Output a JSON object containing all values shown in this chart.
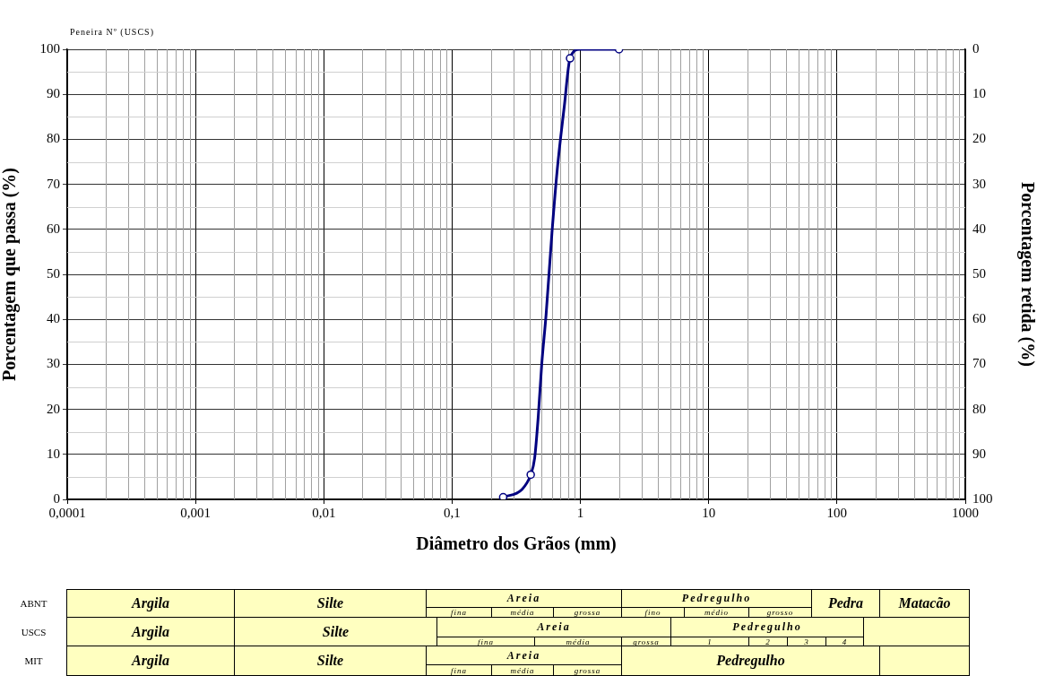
{
  "chart_data": {
    "type": "line",
    "xlabel": "Diâmetro dos Grãos (mm)",
    "ylabel": "Porcentagem que passa (%)",
    "y2label": "Porcentagem retida (%)",
    "log": "x",
    "grid": true,
    "xlim": [
      0.0001,
      1000
    ],
    "xticks": [
      {
        "value": 0.0001,
        "label": "0,0001"
      },
      {
        "value": 0.001,
        "label": "0,001"
      },
      {
        "value": 0.01,
        "label": "0,01"
      },
      {
        "value": 0.1,
        "label": "0,1"
      },
      1,
      10,
      100,
      1000
    ],
    "ylim": [
      0,
      100
    ],
    "yticks": [
      0,
      10,
      20,
      30,
      40,
      50,
      60,
      70,
      80,
      90,
      100
    ],
    "y2lim": [
      100,
      0
    ],
    "y2ticks": [
      0,
      10,
      20,
      30,
      40,
      50,
      60,
      70,
      80,
      90,
      100
    ],
    "series": [
      {
        "type": "line",
        "color": "#000080",
        "marker": "none",
        "x": [
          0.25,
          0.35,
          0.41,
          0.44,
          0.47,
          0.5,
          0.54,
          0.6,
          0.66,
          0.75,
          0.83,
          0.99,
          1.26,
          2.0
        ],
        "values": [
          0.5,
          2.2,
          5.5,
          9.2,
          18.7,
          30.2,
          41,
          59.2,
          73.3,
          87.5,
          98,
          100,
          100,
          100
        ]
      },
      {
        "type": "scatter",
        "color": "#000080",
        "marker": "circle",
        "x": [
          0.25,
          0.41,
          0.83,
          2.0
        ],
        "values": [
          0.5,
          5.5,
          98,
          100
        ]
      }
    ],
    "annotations": [
      "Peneira Nº (USCS)",
      "ABNT",
      "Argila",
      "Silte",
      "Areia",
      "fina",
      "média",
      "grossa",
      "Pedregulho",
      "fino",
      "médio",
      "grosso",
      "Pedra",
      "Matacão",
      "USCS",
      "Argila",
      "Silte",
      "Areia",
      "fina",
      "média",
      "grossa",
      "Pedregulho",
      "1",
      "2",
      "3",
      "4",
      "MIT",
      "Argila",
      "Silte",
      "Areia",
      "fina",
      "média",
      "grossa",
      "Pedregulho"
    ]
  }
}
